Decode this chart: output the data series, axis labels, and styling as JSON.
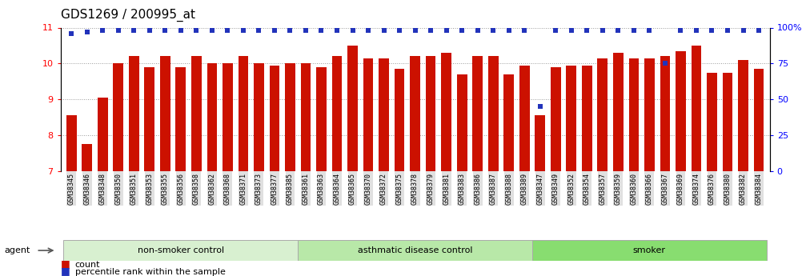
{
  "title": "GDS1269 / 200995_at",
  "categories": [
    "GSM38345",
    "GSM38346",
    "GSM38348",
    "GSM38350",
    "GSM38351",
    "GSM38353",
    "GSM38355",
    "GSM38356",
    "GSM38358",
    "GSM38362",
    "GSM38368",
    "GSM38371",
    "GSM38373",
    "GSM38377",
    "GSM38385",
    "GSM38361",
    "GSM38363",
    "GSM38364",
    "GSM38365",
    "GSM38370",
    "GSM38372",
    "GSM38375",
    "GSM38378",
    "GSM38379",
    "GSM38381",
    "GSM38383",
    "GSM38386",
    "GSM38387",
    "GSM38388",
    "GSM38389",
    "GSM38347",
    "GSM38349",
    "GSM38352",
    "GSM38354",
    "GSM38357",
    "GSM38359",
    "GSM38360",
    "GSM38366",
    "GSM38367",
    "GSM38369",
    "GSM38374",
    "GSM38376",
    "GSM38380",
    "GSM38382",
    "GSM38384"
  ],
  "bar_values": [
    8.55,
    7.75,
    9.05,
    10.0,
    10.2,
    9.9,
    10.2,
    9.9,
    10.2,
    10.0,
    10.0,
    10.2,
    10.0,
    9.95,
    10.0,
    10.0,
    9.9,
    10.2,
    10.5,
    10.15,
    10.15,
    9.85,
    10.2,
    10.2,
    10.3,
    9.7,
    10.2,
    10.2,
    9.7,
    9.95,
    8.55,
    9.9,
    9.95,
    9.95,
    10.15,
    10.3,
    10.15,
    10.15,
    10.2,
    10.35,
    10.5,
    9.75,
    9.75,
    10.1,
    9.85
  ],
  "percentile_values": [
    96,
    97,
    98,
    98,
    98,
    98,
    98,
    98,
    98,
    98,
    98,
    98,
    98,
    98,
    98,
    98,
    98,
    98,
    98,
    98,
    98,
    98,
    98,
    98,
    98,
    98,
    98,
    98,
    98,
    98,
    45,
    98,
    98,
    98,
    98,
    98,
    98,
    98,
    75,
    98,
    98,
    98,
    98,
    98,
    98
  ],
  "groups": [
    {
      "label": "non-smoker control",
      "start": 0,
      "end": 15,
      "color": "#d8f0d0"
    },
    {
      "label": "asthmatic disease control",
      "start": 15,
      "end": 30,
      "color": "#b8e8a8"
    },
    {
      "label": "smoker",
      "start": 30,
      "end": 45,
      "color": "#88dd70"
    }
  ],
  "ylim_left": [
    7,
    11
  ],
  "ylim_right": [
    0,
    100
  ],
  "yticks_left": [
    7,
    8,
    9,
    10,
    11
  ],
  "yticks_right": [
    0,
    25,
    50,
    75,
    100
  ],
  "bar_color": "#cc1100",
  "dot_color": "#2233bb",
  "grid_color": "#999999",
  "tick_label_bg": "#e0e0e0",
  "title_fontsize": 11
}
